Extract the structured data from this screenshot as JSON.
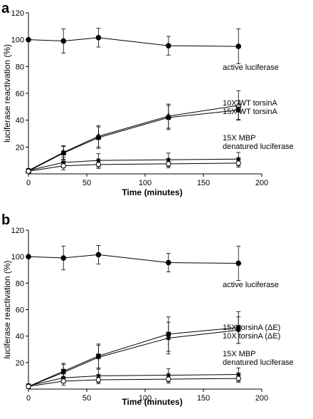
{
  "chart_data": [
    {
      "type": "line",
      "panel": "a",
      "xlabel": "Time (minutes)",
      "ylabel": "luciferase reactivation (%)",
      "xlim": [
        0,
        200
      ],
      "ylim": [
        0,
        120
      ],
      "xticks": [
        "0",
        "50",
        "100",
        "150",
        "200"
      ],
      "yticks": [
        "20",
        "40",
        "60",
        "80",
        "100",
        "120"
      ],
      "x": [
        0,
        30,
        60,
        120,
        180
      ],
      "series": [
        {
          "name": "active luciferase",
          "marker": "circle-filled",
          "values": [
            100,
            99,
            101.5,
            95.5,
            95
          ],
          "errors": [
            0,
            9,
            7,
            7,
            13
          ]
        },
        {
          "name": "10X WT torsinA",
          "marker": "triangle-open",
          "values": [
            2.5,
            16,
            28,
            43,
            51
          ],
          "errors": [
            1.5,
            5,
            8,
            9,
            11
          ]
        },
        {
          "name": "15X WT torsinA",
          "marker": "square-filled",
          "values": [
            2,
            15.5,
            27,
            42,
            47.5
          ],
          "errors": [
            1.5,
            5,
            8,
            9,
            7
          ]
        },
        {
          "name": "15X MBP",
          "marker": "star",
          "values": [
            2.5,
            8.5,
            10,
            10.5,
            11
          ],
          "errors": [
            1.5,
            4,
            5,
            5,
            5
          ]
        },
        {
          "name": "denatured luciferase",
          "marker": "circle-open",
          "values": [
            2,
            6,
            7,
            7.5,
            8
          ],
          "errors": [
            1.5,
            3,
            3,
            3,
            3
          ]
        }
      ]
    },
    {
      "type": "line",
      "panel": "b",
      "xlabel": "Time (minutes)",
      "ylabel": "luciferase reactivation (%)",
      "xlim": [
        0,
        200
      ],
      "ylim": [
        0,
        120
      ],
      "xticks": [
        "0",
        "50",
        "100",
        "150",
        "200"
      ],
      "yticks": [
        "20",
        "40",
        "60",
        "80",
        "100",
        "120"
      ],
      "x": [
        0,
        30,
        60,
        120,
        180
      ],
      "series": [
        {
          "name": "active luciferase",
          "marker": "circle-filled",
          "values": [
            100,
            99,
            101.5,
            95.5,
            95
          ],
          "errors": [
            0,
            9,
            7,
            7,
            13
          ]
        },
        {
          "name": "15X torsinA (ΔE)",
          "marker": "square-filled",
          "values": [
            2,
            13.5,
            25,
            41.5,
            46.5
          ],
          "errors": [
            1.5,
            6,
            9,
            13,
            12
          ]
        },
        {
          "name": "10X torsinA (ΔE)",
          "marker": "star",
          "values": [
            2,
            12.5,
            24,
            38.5,
            44.5
          ],
          "errors": [
            1.5,
            6,
            9,
            12,
            10
          ]
        },
        {
          "name": "15X MBP",
          "marker": "star",
          "values": [
            2.5,
            8.5,
            10,
            10.5,
            11
          ],
          "errors": [
            1.5,
            4,
            5,
            5,
            5
          ]
        },
        {
          "name": "denatured luciferase",
          "marker": "circle-open",
          "values": [
            2,
            6,
            7,
            7.5,
            8
          ],
          "errors": [
            1.5,
            3,
            3,
            3,
            3
          ]
        }
      ]
    }
  ]
}
